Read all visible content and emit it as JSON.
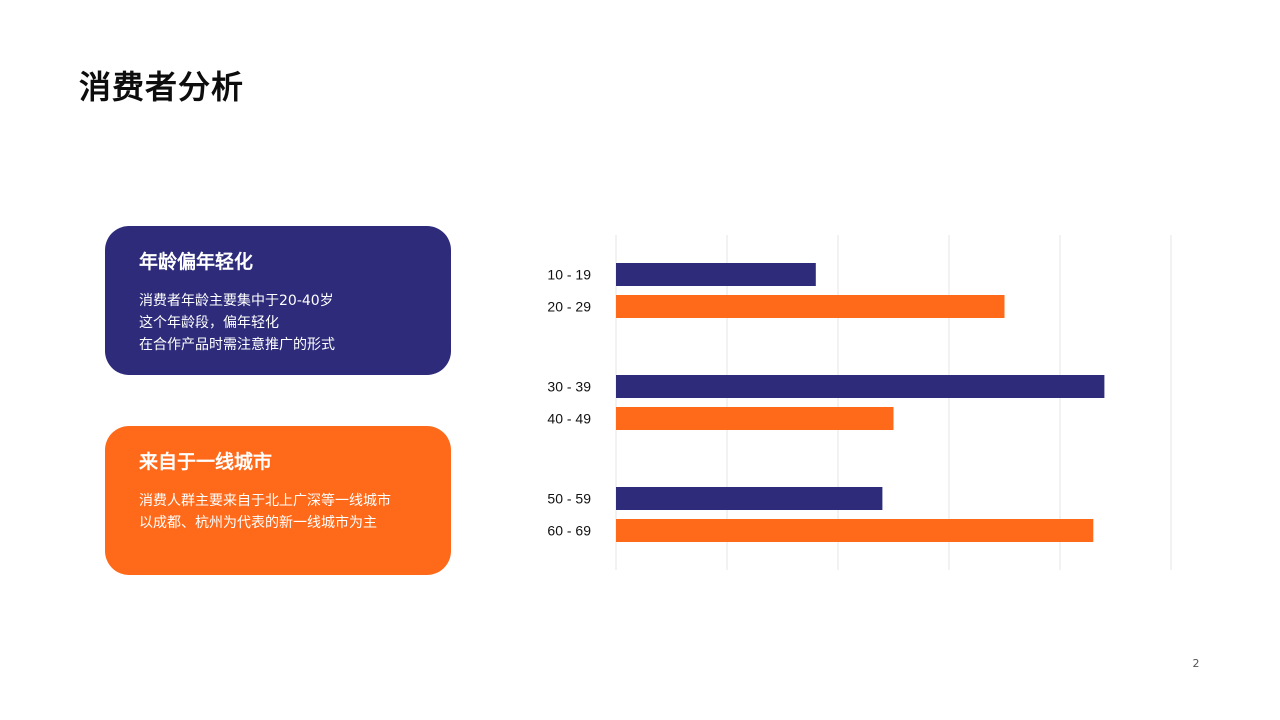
{
  "slide": {
    "title": "消费者分析",
    "page_number": "2"
  },
  "cards": [
    {
      "title": "年龄偏年轻化",
      "lines": [
        "消费者年龄主要集中于20-40岁",
        "这个年龄段，偏年轻化",
        "在合作产品时需注意推广的形式"
      ],
      "color": "#2d2b7a"
    },
    {
      "title": "来自于一线城市",
      "lines": [
        "消费人群主要来自于北上广深等一线城市",
        "以成都、杭州为代表的新一线城市为主"
      ],
      "color": "#ff6a1a"
    }
  ],
  "chart_data": {
    "type": "bar",
    "orientation": "horizontal",
    "categories": [
      "10 - 19",
      "20 - 29",
      "30 - 39",
      "40 - 49",
      "50 - 59",
      "60 - 69"
    ],
    "values": [
      18,
      35,
      44,
      25,
      24,
      43
    ],
    "bar_colors": [
      "#2d2b7a",
      "#ff6a1a",
      "#2d2b7a",
      "#ff6a1a",
      "#2d2b7a",
      "#ff6a1a"
    ],
    "xlim": [
      0,
      50
    ],
    "grid": true,
    "legend": false,
    "title": "",
    "xlabel": "",
    "ylabel": ""
  }
}
